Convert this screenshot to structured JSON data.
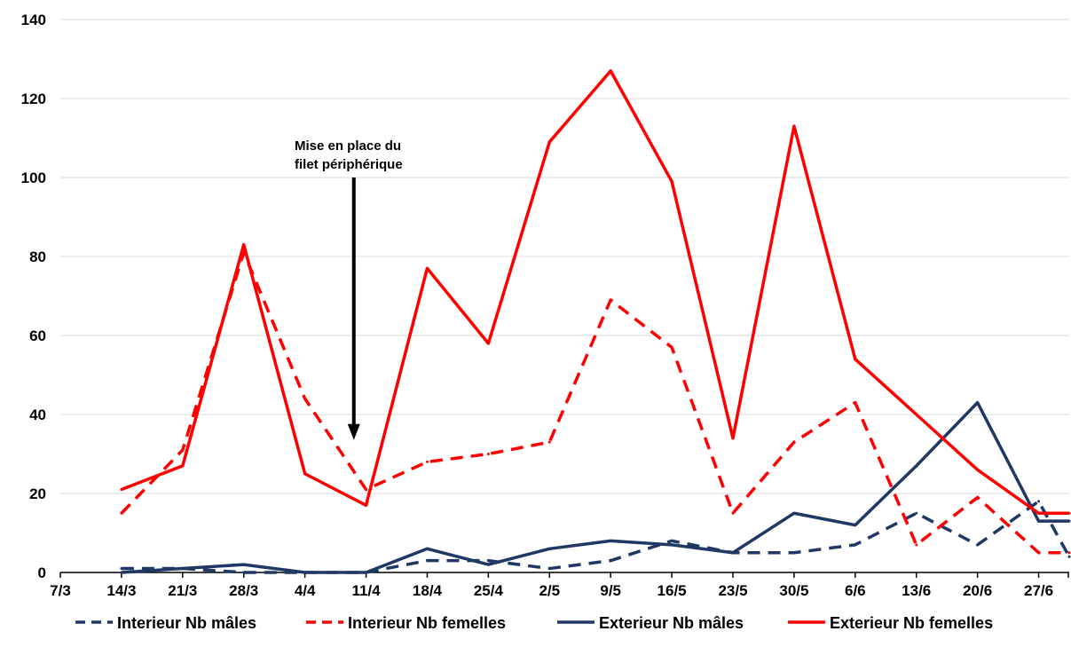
{
  "chart_data": {
    "type": "line",
    "title": "",
    "xlabel": "",
    "ylabel": "",
    "ylim": [
      0,
      140
    ],
    "yticks": [
      0,
      20,
      40,
      60,
      80,
      100,
      120,
      140
    ],
    "grid": true,
    "legend_position": "bottom",
    "categories": [
      "7/3",
      "14/3",
      "21/3",
      "28/3",
      "4/4",
      "11/4",
      "18/4",
      "25/4",
      "2/5",
      "9/5",
      "16/5",
      "23/5",
      "30/5",
      "6/6",
      "13/6",
      "20/6",
      "27/6"
    ],
    "series": [
      {
        "name": "Interieur Nb mâles",
        "color": "#1f3864",
        "dash": "dashed",
        "x": [
          1,
          2,
          3,
          4,
          5,
          6,
          7,
          8,
          9,
          10,
          11,
          12,
          13,
          14,
          15,
          16,
          16.5
        ],
        "values": [
          1,
          1,
          0,
          0,
          0,
          3,
          3,
          1,
          3,
          8,
          5,
          5,
          7,
          15,
          7,
          18,
          4
        ]
      },
      {
        "name": "Interieur Nb femelles",
        "color": "#ff0000",
        "dash": "dashed",
        "x": [
          1,
          2,
          3,
          4,
          5,
          6,
          7,
          8,
          9,
          10,
          11,
          12,
          13,
          14,
          15,
          16,
          16.5
        ],
        "values": [
          15,
          31,
          81,
          44,
          21,
          28,
          30,
          33,
          69,
          57,
          15,
          33,
          43,
          7,
          19,
          5,
          5
        ]
      },
      {
        "name": "Exterieur Nb mâles",
        "color": "#1f3864",
        "dash": "solid",
        "x": [
          1,
          2,
          3,
          4,
          5,
          6,
          7,
          8,
          9,
          10,
          11,
          12,
          13,
          14,
          15,
          16,
          16.5
        ],
        "values": [
          0,
          1,
          2,
          0,
          0,
          6,
          2,
          6,
          8,
          7,
          5,
          15,
          12,
          27,
          43,
          13,
          13
        ]
      },
      {
        "name": "Exterieur Nb femelles",
        "color": "#ff0000",
        "dash": "solid",
        "x": [
          1,
          2,
          3,
          4,
          5,
          6,
          7,
          8,
          9,
          10,
          11,
          12,
          13,
          14,
          15,
          16,
          16.5
        ],
        "values": [
          21,
          27,
          83,
          25,
          17,
          77,
          58,
          109,
          127,
          99,
          34,
          113,
          54,
          40,
          26,
          15,
          15
        ]
      }
    ],
    "annotations": [
      {
        "lines": [
          "Mise en place du",
          "filet périphérique"
        ],
        "arrow_x": 4.8,
        "arrow_y_from": 100,
        "arrow_y_to": 34
      }
    ]
  }
}
